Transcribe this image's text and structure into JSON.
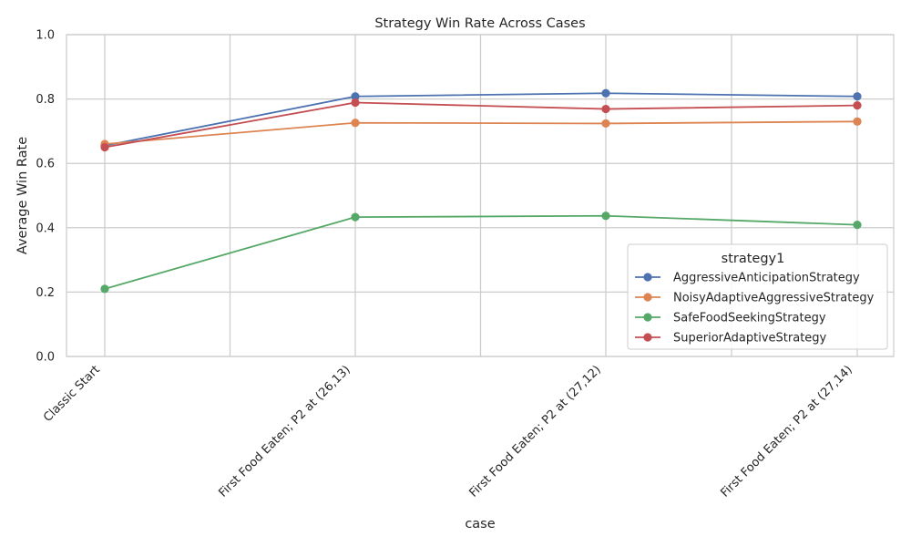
{
  "chart_data": {
    "type": "line",
    "title": "Strategy Win Rate Across Cases",
    "xlabel": "case",
    "ylabel": "Average Win Rate",
    "categories": [
      "Classic Start",
      "First Food Eaten; P2 at (26,13)",
      "First Food Eaten; P2 at (27,12)",
      "First Food Eaten; P2 at (27,14)"
    ],
    "ylim": [
      0,
      1.0
    ],
    "yticks": [
      "0.0",
      "0.2",
      "0.4",
      "0.6",
      "0.8",
      "1.0"
    ],
    "grid": true,
    "legend": {
      "title": "strategy1",
      "placement": "lower-right"
    },
    "series": [
      {
        "name": "AggressiveAnticipationStrategy",
        "color": "#4c72b0",
        "values": [
          0.655,
          0.808,
          0.818,
          0.808
        ]
      },
      {
        "name": "NoisyAdaptiveAggressiveStrategy",
        "color": "#dd8452",
        "values": [
          0.66,
          0.726,
          0.724,
          0.73
        ]
      },
      {
        "name": "SafeFoodSeekingStrategy",
        "color": "#55a868",
        "values": [
          0.21,
          0.433,
          0.437,
          0.409
        ]
      },
      {
        "name": "SuperiorAdaptiveStrategy",
        "color": "#c44e52",
        "values": [
          0.65,
          0.789,
          0.769,
          0.78
        ]
      }
    ]
  }
}
